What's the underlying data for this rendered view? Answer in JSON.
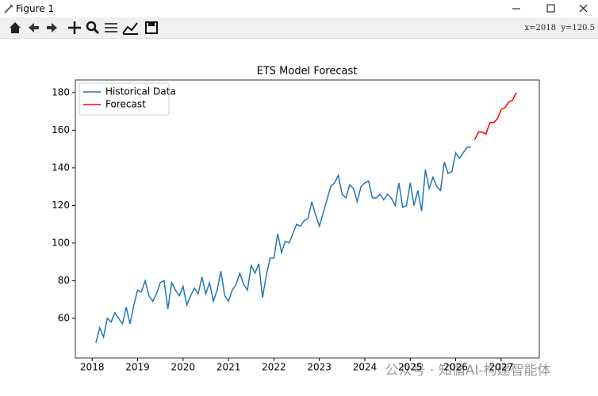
{
  "window": {
    "title": "Figure 1",
    "status": "x=2018  y=120.5"
  },
  "watermark": "公众号 · 知循AI-构建智能体",
  "chart_data": {
    "type": "line",
    "title": "ETS Model Forecast",
    "xlim": [
      2017.63,
      2027.84
    ],
    "xticks": [
      2018,
      2019,
      2020,
      2021,
      2022,
      2023,
      2024,
      2025,
      2026,
      2027
    ],
    "ylim": [
      38.9,
      186.7
    ],
    "yticks": [
      60,
      80,
      100,
      120,
      140,
      160,
      180
    ],
    "legend": "upper left",
    "grid": false,
    "series": [
      {
        "name": "Historical Data",
        "color": "#1f77b4",
        "x": [
          2018.083,
          2018.167,
          2018.25,
          2018.333,
          2018.417,
          2018.5,
          2018.583,
          2018.667,
          2018.75,
          2018.833,
          2018.917,
          2019,
          2019.083,
          2019.167,
          2019.25,
          2019.333,
          2019.417,
          2019.5,
          2019.583,
          2019.667,
          2019.75,
          2019.833,
          2019.917,
          2020,
          2020.083,
          2020.167,
          2020.25,
          2020.333,
          2020.417,
          2020.5,
          2020.583,
          2020.667,
          2020.75,
          2020.833,
          2020.917,
          2021,
          2021.083,
          2021.167,
          2021.25,
          2021.333,
          2021.417,
          2021.5,
          2021.583,
          2021.667,
          2021.75,
          2021.833,
          2021.917,
          2022,
          2022.083,
          2022.167,
          2022.25,
          2022.333,
          2022.417,
          2022.5,
          2022.583,
          2022.667,
          2022.75,
          2022.833,
          2022.917,
          2023,
          2023.083,
          2023.167,
          2023.25,
          2023.333,
          2023.417,
          2023.5,
          2023.583,
          2023.667,
          2023.75,
          2023.833,
          2023.917,
          2024,
          2024.083,
          2024.167,
          2024.25,
          2024.333,
          2024.417,
          2024.5,
          2024.583,
          2024.667,
          2024.75,
          2024.833,
          2024.917,
          2025,
          2025.083,
          2025.167,
          2025.25,
          2025.333,
          2025.417,
          2025.5,
          2025.583,
          2025.667,
          2025.75,
          2025.833,
          2025.917,
          2026,
          2026.083,
          2026.167,
          2026.25,
          2026.333
        ],
        "values": [
          47,
          55,
          50,
          60,
          58,
          63,
          60,
          57,
          66,
          57,
          67,
          75,
          74,
          80,
          72,
          69,
          73,
          79,
          80,
          65,
          79,
          75,
          72,
          77,
          67,
          72,
          76,
          73,
          82,
          73,
          79,
          69,
          75,
          85,
          72,
          69,
          75,
          78,
          84,
          78,
          75,
          88,
          84,
          89,
          71,
          83,
          92,
          92,
          105,
          95,
          101,
          100,
          105,
          110,
          109,
          112,
          113,
          122,
          115,
          109,
          116,
          123,
          130,
          132,
          136,
          126,
          124,
          131,
          129,
          122,
          130,
          132,
          133,
          124,
          124,
          126,
          123,
          126,
          124,
          120,
          132,
          119,
          120,
          132,
          120,
          128,
          117,
          139,
          129,
          135,
          130,
          128,
          143,
          137,
          138,
          148,
          145,
          148,
          151,
          151
        ]
      },
      {
        "name": "Forecast",
        "color": "#ff0000",
        "x": [
          2026.417,
          2026.5,
          2026.583,
          2026.667,
          2026.75,
          2026.833,
          2026.917,
          2027,
          2027.083,
          2027.167,
          2027.25,
          2027.333
        ],
        "values": [
          155,
          159,
          159,
          158,
          164,
          164,
          166,
          171,
          172,
          175,
          176,
          180
        ]
      }
    ]
  }
}
